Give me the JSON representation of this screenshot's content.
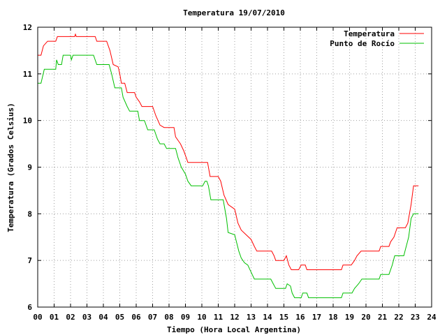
{
  "chart_data": {
    "type": "line",
    "title": "Temperatura 19/07/2010",
    "xlabel": "Tiempo (Hora Local Argentina)",
    "ylabel": "Temperatura (Grados Celsius)",
    "xlim": [
      0,
      24
    ],
    "ylim": [
      6,
      12
    ],
    "x_ticks": [
      "00",
      "01",
      "02",
      "03",
      "04",
      "05",
      "06",
      "07",
      "08",
      "09",
      "10",
      "11",
      "12",
      "13",
      "14",
      "15",
      "16",
      "17",
      "18",
      "19",
      "20",
      "21",
      "22",
      "23",
      "24"
    ],
    "y_ticks": [
      "6",
      "7",
      "8",
      "9",
      "10",
      "11",
      "12"
    ],
    "grid": true,
    "legend_position": "top-right",
    "series": [
      {
        "name": "Temperatura",
        "color": "#ff0000",
        "points": [
          [
            0.0,
            11.4
          ],
          [
            0.2,
            11.4
          ],
          [
            0.35,
            11.6
          ],
          [
            0.6,
            11.7
          ],
          [
            1.1,
            11.7
          ],
          [
            1.2,
            11.8
          ],
          [
            2.25,
            11.8
          ],
          [
            2.3,
            11.85
          ],
          [
            2.35,
            11.8
          ],
          [
            3.5,
            11.8
          ],
          [
            3.6,
            11.7
          ],
          [
            4.2,
            11.7
          ],
          [
            4.4,
            11.5
          ],
          [
            4.6,
            11.2
          ],
          [
            4.9,
            11.15
          ],
          [
            5.0,
            11.0
          ],
          [
            5.1,
            10.8
          ],
          [
            5.3,
            10.8
          ],
          [
            5.45,
            10.6
          ],
          [
            5.9,
            10.6
          ],
          [
            6.0,
            10.5
          ],
          [
            6.2,
            10.4
          ],
          [
            6.35,
            10.3
          ],
          [
            7.0,
            10.3
          ],
          [
            7.2,
            10.1
          ],
          [
            7.45,
            9.9
          ],
          [
            7.7,
            9.85
          ],
          [
            8.3,
            9.85
          ],
          [
            8.4,
            9.65
          ],
          [
            8.7,
            9.5
          ],
          [
            8.9,
            9.35
          ],
          [
            9.05,
            9.2
          ],
          [
            9.15,
            9.1
          ],
          [
            10.35,
            9.1
          ],
          [
            10.5,
            8.8
          ],
          [
            11.0,
            8.8
          ],
          [
            11.15,
            8.7
          ],
          [
            11.35,
            8.4
          ],
          [
            11.6,
            8.2
          ],
          [
            12.0,
            8.1
          ],
          [
            12.2,
            7.8
          ],
          [
            12.4,
            7.65
          ],
          [
            12.7,
            7.55
          ],
          [
            13.0,
            7.45
          ],
          [
            13.2,
            7.3
          ],
          [
            13.35,
            7.2
          ],
          [
            14.25,
            7.2
          ],
          [
            14.4,
            7.1
          ],
          [
            14.5,
            7.0
          ],
          [
            15.0,
            7.0
          ],
          [
            15.15,
            7.1
          ],
          [
            15.3,
            6.9
          ],
          [
            15.45,
            6.8
          ],
          [
            15.9,
            6.8
          ],
          [
            16.05,
            6.9
          ],
          [
            16.3,
            6.9
          ],
          [
            16.4,
            6.8
          ],
          [
            18.5,
            6.8
          ],
          [
            18.6,
            6.9
          ],
          [
            19.1,
            6.9
          ],
          [
            19.3,
            7.0
          ],
          [
            19.45,
            7.1
          ],
          [
            19.7,
            7.2
          ],
          [
            20.8,
            7.2
          ],
          [
            20.9,
            7.3
          ],
          [
            21.4,
            7.3
          ],
          [
            21.5,
            7.4
          ],
          [
            21.7,
            7.5
          ],
          [
            21.9,
            7.7
          ],
          [
            22.4,
            7.7
          ],
          [
            22.55,
            7.8
          ],
          [
            22.75,
            8.2
          ],
          [
            22.9,
            8.6
          ],
          [
            23.2,
            8.6
          ]
        ]
      },
      {
        "name": "Punto de Rocío",
        "color": "#00c000",
        "points": [
          [
            0.0,
            10.8
          ],
          [
            0.2,
            10.8
          ],
          [
            0.4,
            11.1
          ],
          [
            1.1,
            11.1
          ],
          [
            1.15,
            11.3
          ],
          [
            1.25,
            11.2
          ],
          [
            1.45,
            11.2
          ],
          [
            1.55,
            11.4
          ],
          [
            2.0,
            11.4
          ],
          [
            2.05,
            11.3
          ],
          [
            2.15,
            11.4
          ],
          [
            3.4,
            11.4
          ],
          [
            3.6,
            11.2
          ],
          [
            4.35,
            11.2
          ],
          [
            4.5,
            11.0
          ],
          [
            4.7,
            10.7
          ],
          [
            5.1,
            10.7
          ],
          [
            5.2,
            10.5
          ],
          [
            5.45,
            10.3
          ],
          [
            5.6,
            10.2
          ],
          [
            6.1,
            10.2
          ],
          [
            6.2,
            10.0
          ],
          [
            6.5,
            10.0
          ],
          [
            6.7,
            9.8
          ],
          [
            7.1,
            9.8
          ],
          [
            7.3,
            9.6
          ],
          [
            7.45,
            9.5
          ],
          [
            7.7,
            9.5
          ],
          [
            7.85,
            9.4
          ],
          [
            8.4,
            9.4
          ],
          [
            8.55,
            9.2
          ],
          [
            8.75,
            9.0
          ],
          [
            9.0,
            8.85
          ],
          [
            9.15,
            8.7
          ],
          [
            9.35,
            8.6
          ],
          [
            10.05,
            8.6
          ],
          [
            10.2,
            8.7
          ],
          [
            10.3,
            8.7
          ],
          [
            10.4,
            8.6
          ],
          [
            10.55,
            8.3
          ],
          [
            11.3,
            8.3
          ],
          [
            11.5,
            7.9
          ],
          [
            11.6,
            7.6
          ],
          [
            12.0,
            7.55
          ],
          [
            12.25,
            7.2
          ],
          [
            12.4,
            7.05
          ],
          [
            12.6,
            6.95
          ],
          [
            12.8,
            6.9
          ],
          [
            13.0,
            6.75
          ],
          [
            13.2,
            6.6
          ],
          [
            14.2,
            6.6
          ],
          [
            14.35,
            6.5
          ],
          [
            14.5,
            6.4
          ],
          [
            15.1,
            6.4
          ],
          [
            15.2,
            6.5
          ],
          [
            15.4,
            6.45
          ],
          [
            15.5,
            6.3
          ],
          [
            15.65,
            6.2
          ],
          [
            16.05,
            6.2
          ],
          [
            16.15,
            6.3
          ],
          [
            16.4,
            6.3
          ],
          [
            16.5,
            6.2
          ],
          [
            18.5,
            6.2
          ],
          [
            18.6,
            6.3
          ],
          [
            19.15,
            6.3
          ],
          [
            19.3,
            6.4
          ],
          [
            19.55,
            6.5
          ],
          [
            19.75,
            6.6
          ],
          [
            20.8,
            6.6
          ],
          [
            20.9,
            6.7
          ],
          [
            21.4,
            6.7
          ],
          [
            21.6,
            6.9
          ],
          [
            21.75,
            7.1
          ],
          [
            22.3,
            7.1
          ],
          [
            22.45,
            7.3
          ],
          [
            22.6,
            7.5
          ],
          [
            22.75,
            7.9
          ],
          [
            22.9,
            8.0
          ],
          [
            23.2,
            8.0
          ]
        ]
      }
    ]
  }
}
